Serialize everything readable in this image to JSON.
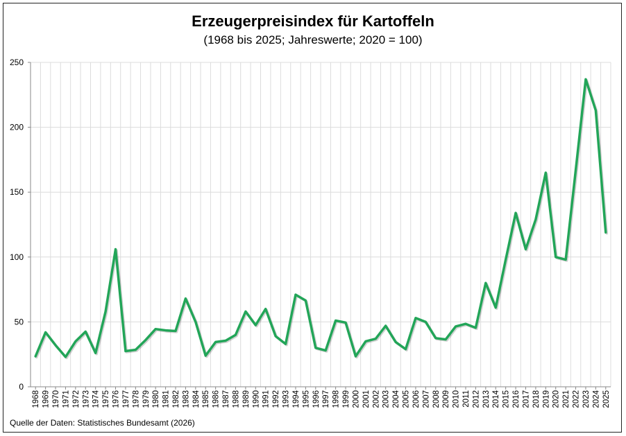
{
  "chart_data": {
    "type": "line",
    "title": "Erzeugerpreisindex für Kartoffeln",
    "subtitle": "(1968 bis 2025; Jahreswerte; 2020 = 100)",
    "xlabel": "",
    "ylabel": "",
    "ylim": [
      0,
      250
    ],
    "yticks": [
      0,
      50,
      100,
      150,
      200,
      250
    ],
    "grid": true,
    "line_color": "#22a558",
    "source": "Quelle der Daten: Statistisches Bundesamt (2026)",
    "x": [
      1968,
      1969,
      1970,
      1971,
      1972,
      1973,
      1974,
      1975,
      1976,
      1977,
      1978,
      1979,
      1980,
      1981,
      1982,
      1983,
      1984,
      1985,
      1986,
      1987,
      1988,
      1989,
      1990,
      1991,
      1992,
      1993,
      1994,
      1995,
      1996,
      1997,
      1998,
      1999,
      2000,
      2001,
      2002,
      2003,
      2004,
      2005,
      2006,
      2007,
      2008,
      2009,
      2010,
      2011,
      2012,
      2013,
      2014,
      2015,
      2016,
      2017,
      2018,
      2019,
      2020,
      2021,
      2022,
      2023,
      2024,
      2025
    ],
    "values": [
      23.5,
      42,
      32,
      23,
      35,
      42.5,
      26,
      58,
      106,
      27.5,
      28.5,
      36,
      44.5,
      43.5,
      43,
      68,
      50,
      24,
      34.5,
      35.5,
      40,
      58,
      47.5,
      60,
      39,
      33,
      71,
      66.5,
      30,
      28,
      51,
      49.5,
      23.5,
      35,
      37,
      47,
      34.5,
      29,
      53,
      50,
      37.5,
      36.5,
      46.5,
      48.5,
      45.5,
      80,
      61,
      98,
      134,
      106,
      129,
      165,
      100,
      98,
      167,
      237,
      213,
      119
    ]
  }
}
